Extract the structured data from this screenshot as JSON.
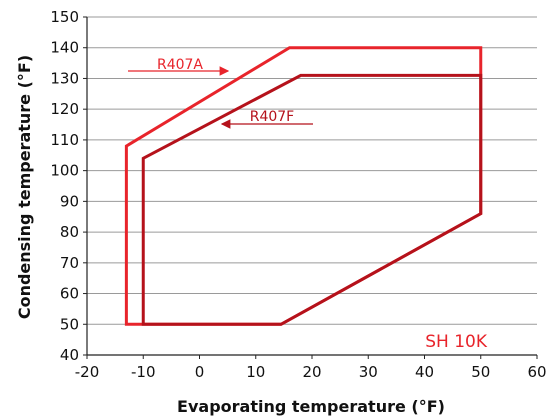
{
  "chart_data": {
    "type": "line",
    "title": "",
    "xlabel": "Evaporating temperature (°F)",
    "ylabel": "Condensing temperature (°F)",
    "xlim": [
      -20,
      60
    ],
    "ylim": [
      40,
      150
    ],
    "x_ticks": [
      -20,
      -10,
      0,
      10,
      20,
      30,
      40,
      50,
      60
    ],
    "y_ticks": [
      40,
      50,
      60,
      70,
      80,
      90,
      100,
      110,
      120,
      130,
      140,
      150
    ],
    "grid": true,
    "annotation": "SH 10K",
    "series": [
      {
        "name": "R407A",
        "color": "#e8242b",
        "label_arrow": "right",
        "points": [
          [
            -13,
            108
          ],
          [
            16,
            140
          ],
          [
            50,
            140
          ],
          [
            50,
            86
          ],
          [
            14.5,
            50
          ],
          [
            -13,
            50
          ]
        ]
      },
      {
        "name": "R407F",
        "color": "#b5121b",
        "label_arrow": "left",
        "points": [
          [
            -10,
            104
          ],
          [
            18,
            131
          ],
          [
            50,
            131
          ],
          [
            50,
            86
          ],
          [
            14.5,
            50
          ],
          [
            -10,
            50
          ]
        ]
      }
    ]
  }
}
